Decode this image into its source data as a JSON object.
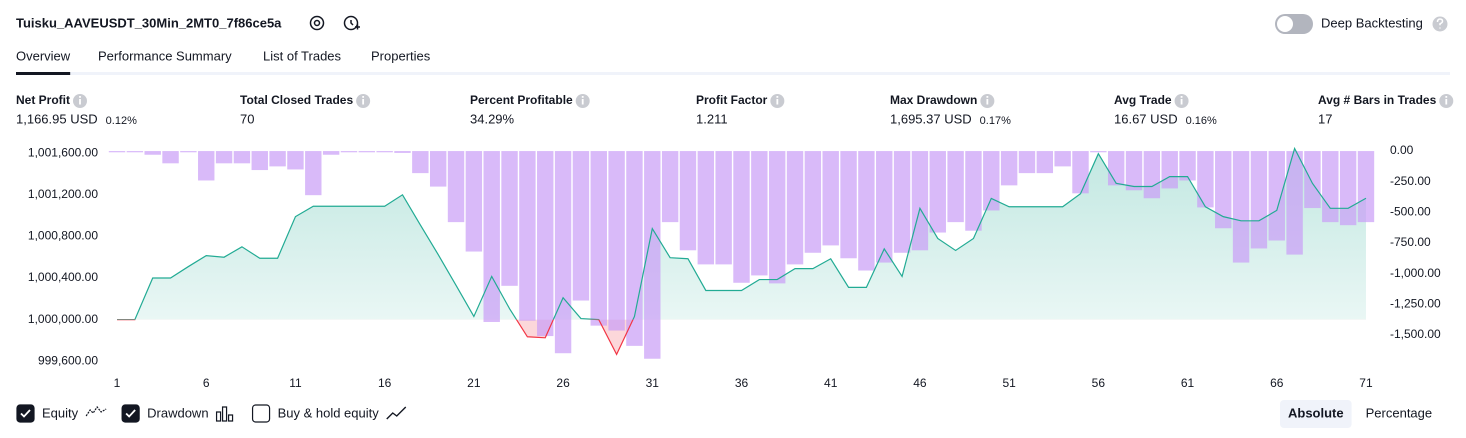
{
  "header": {
    "title": "Tuisku_AAVEUSDT_30Min_2MT0_7f86ce5a",
    "deep_backtesting": "Deep Backtesting"
  },
  "tabs": [
    "Overview",
    "Performance Summary",
    "List of Trades",
    "Properties"
  ],
  "stats": [
    {
      "label": "Net Profit",
      "value": "1,166.95 USD",
      "percent": "0.12%",
      "color": "#089981"
    },
    {
      "label": "Total Closed Trades",
      "value": "70",
      "color": "#131722"
    },
    {
      "label": "Percent Profitable",
      "value": "34.29%",
      "color": "#089981"
    },
    {
      "label": "Profit Factor",
      "value": "1.211",
      "color": "#089981"
    },
    {
      "label": "Max Drawdown",
      "value": "1,695.37 USD",
      "percent": "0.17%",
      "color": "#f23645"
    },
    {
      "label": "Avg Trade",
      "value": "16.67 USD",
      "percent": "0.16%",
      "color": "#089981"
    },
    {
      "label": "Avg # Bars in Trades",
      "value": "17",
      "color": "#131722"
    }
  ],
  "chart_data": {
    "type": "line",
    "x": [
      1,
      2,
      3,
      4,
      5,
      6,
      7,
      8,
      9,
      10,
      11,
      12,
      13,
      14,
      15,
      16,
      17,
      18,
      19,
      20,
      21,
      22,
      23,
      24,
      25,
      26,
      27,
      28,
      29,
      30,
      31,
      32,
      33,
      34,
      35,
      36,
      37,
      38,
      39,
      40,
      41,
      42,
      43,
      44,
      45,
      46,
      47,
      48,
      49,
      50,
      51,
      52,
      53,
      54,
      55,
      56,
      57,
      58,
      59,
      60,
      61,
      62,
      63,
      64,
      65,
      66,
      67,
      68,
      69,
      70,
      71
    ],
    "xlim": [
      0.5,
      71.5
    ],
    "xticks": [
      1,
      6,
      11,
      16,
      21,
      26,
      31,
      36,
      41,
      46,
      51,
      56,
      61,
      66,
      71
    ],
    "ylim": [
      999500,
      1001650
    ],
    "yticks": [
      {
        "value": 999600,
        "label": "999,600.00"
      },
      {
        "value": 1000000,
        "label": "1,000,000.00"
      },
      {
        "value": 1000400,
        "label": "1,000,400.00"
      },
      {
        "value": 1000800,
        "label": "1,000,800.00"
      },
      {
        "value": 1001200,
        "label": "1,001,200.00"
      },
      {
        "value": 1001600,
        "label": "1,001,600.00"
      }
    ],
    "y2lim": [
      -1800,
      25
    ],
    "y2ticks": [
      {
        "value": 0,
        "label": "0.00"
      },
      {
        "value": -250,
        "label": "-250.00"
      },
      {
        "value": -500,
        "label": "-500.00"
      },
      {
        "value": -750,
        "label": "-750.00"
      },
      {
        "value": -1000,
        "label": "-1,000.00"
      },
      {
        "value": -1250,
        "label": "-1,250.00"
      },
      {
        "value": -1500,
        "label": "-1,500.00"
      }
    ],
    "series": [
      {
        "name": "Equity",
        "type": "line",
        "color": "#22ab94",
        "negative_color": "#f23645",
        "checked": true,
        "values": [
          1000000,
          1000000,
          1000400,
          1000400,
          1000510,
          1000615,
          1000600,
          1000700,
          1000590,
          1000590,
          1000990,
          1001090,
          1001090,
          1001090,
          1001090,
          1001090,
          1001200,
          1000910,
          1000625,
          1000330,
          1000030,
          1000415,
          1000105,
          999835,
          999825,
          1000210,
          1000010,
          1000000,
          999665,
          1000030,
          1000875,
          1000595,
          1000585,
          1000280,
          1000280,
          1000280,
          1000385,
          1000385,
          1000490,
          1000490,
          1000585,
          1000310,
          1000310,
          1000680,
          1000415,
          1001070,
          1000780,
          1000665,
          1000780,
          1001165,
          1001085,
          1001085,
          1001085,
          1001085,
          1001210,
          1001595,
          1001310,
          1001280,
          1001280,
          1001375,
          1001375,
          1001085,
          1000990,
          1000950,
          1000950,
          1001050,
          1001645,
          1001310,
          1001070,
          1001070,
          1001167
        ]
      },
      {
        "name": "Drawdown",
        "type": "bar",
        "axis": "y2",
        "color": "#c99cf6",
        "checked": true,
        "values": [
          -10,
          -10,
          -30,
          -100,
          -10,
          -240,
          -100,
          -100,
          -155,
          -125,
          -150,
          -360,
          -30,
          -10,
          -10,
          -10,
          -15,
          -180,
          -290,
          -580,
          -820,
          -1395,
          -1100,
          -1385,
          -1510,
          -1650,
          -1220,
          -1425,
          -1465,
          -1590,
          -1695,
          -580,
          -810,
          -925,
          -925,
          -1075,
          -1015,
          -1080,
          -925,
          -830,
          -770,
          -875,
          -975,
          -910,
          -830,
          -810,
          -665,
          -580,
          -650,
          -485,
          -280,
          -180,
          -180,
          -125,
          -345,
          -10,
          -280,
          -320,
          -385,
          -305,
          -240,
          -460,
          -630,
          -910,
          -795,
          -730,
          -845,
          -465,
          -580,
          -605,
          -580
        ]
      }
    ],
    "buy_hold": {
      "name": "Buy & hold equity",
      "checked": false
    }
  },
  "view_buttons": {
    "items": [
      "Absolute",
      "Percentage"
    ],
    "active": 0
  }
}
